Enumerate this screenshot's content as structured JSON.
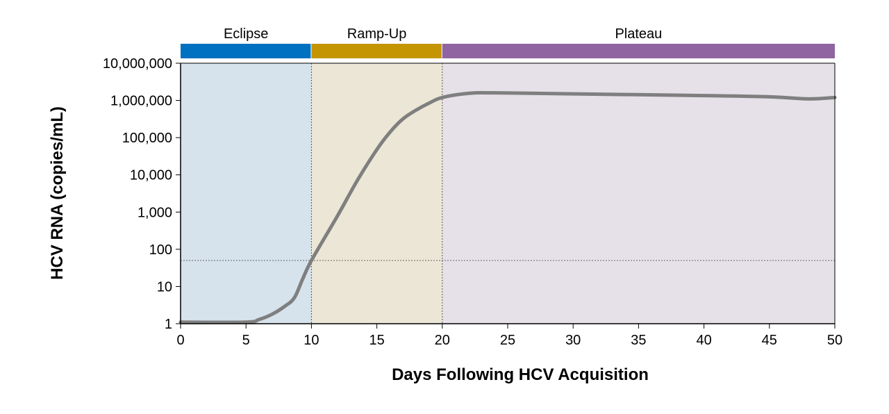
{
  "chart_data": {
    "type": "line",
    "xlabel": "Days Following HCV Acquisition",
    "ylabel": "HCV RNA (copies/mL)",
    "xlim": [
      0,
      50
    ],
    "ylim": [
      1,
      10000000
    ],
    "yscale": "log",
    "grid": false,
    "x_ticks": [
      "0",
      "5",
      "10",
      "15",
      "20",
      "25",
      "30",
      "35",
      "40",
      "45",
      "50"
    ],
    "x_tick_values": [
      0,
      5,
      10,
      15,
      20,
      25,
      30,
      35,
      40,
      45,
      50
    ],
    "y_ticks": [
      "1",
      "10",
      "100",
      "1,000",
      "10,000",
      "100,000",
      "1,000,000",
      "10,000,000"
    ],
    "y_tick_values": [
      1,
      10,
      100,
      1000,
      10000,
      100000,
      1000000,
      10000000
    ],
    "phases": [
      {
        "label": "Eclipse",
        "start": 0,
        "end": 10,
        "bar_color": "#0070C0",
        "fill_color": "#D6E2EC"
      },
      {
        "label": "Ramp-Up",
        "start": 10,
        "end": 20,
        "bar_color": "#C49500",
        "fill_color": "#ECE6D6"
      },
      {
        "label": "Plateau",
        "start": 20,
        "end": 50,
        "bar_color": "#8F64A0",
        "fill_color": "#E6E1E9"
      }
    ],
    "reference_line_y": 50,
    "series": [
      {
        "color": "#7F7F7F",
        "x": [
          0,
          5,
          6,
          7,
          8,
          8.7,
          9.3,
          10,
          12,
          13.5,
          15,
          16,
          17,
          18,
          19,
          20,
          22,
          24,
          30,
          40,
          45,
          48,
          50
        ],
        "y": [
          1.1,
          1.1,
          1.3,
          1.8,
          3,
          5,
          15,
          50,
          800,
          7000,
          48000,
          140000,
          320000,
          550000,
          850000,
          1200000,
          1550000,
          1600000,
          1500000,
          1350000,
          1250000,
          1100000,
          1200000
        ]
      }
    ]
  }
}
